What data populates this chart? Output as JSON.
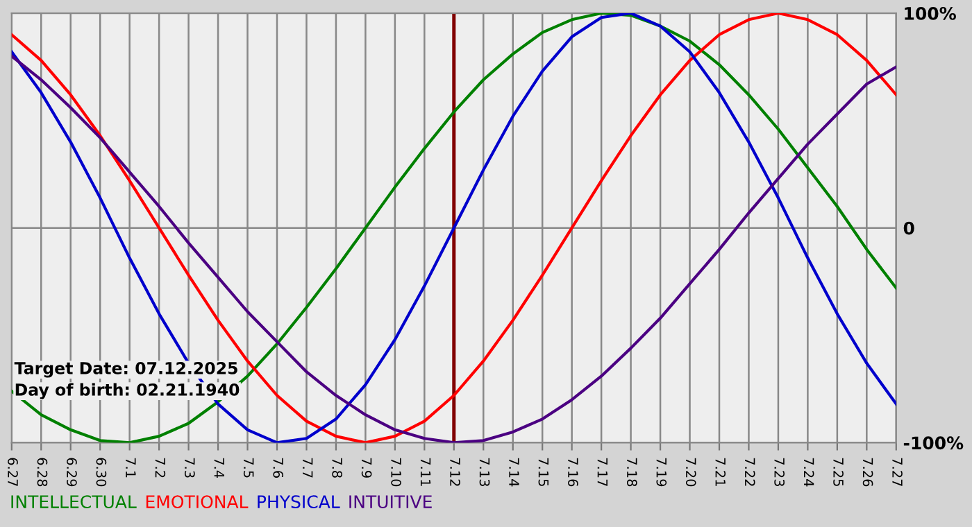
{
  "chart_data": {
    "type": "line",
    "categories": [
      "6.27",
      "6.28",
      "6.29",
      "6.30",
      "7.1",
      "7.2",
      "7.3",
      "7.4",
      "7.5",
      "7.6",
      "7.7",
      "7.8",
      "7.9",
      "7.10",
      "7.11",
      "7.12",
      "7.13",
      "7.14",
      "7.15",
      "7.16",
      "7.17",
      "7.18",
      "7.19",
      "7.20",
      "7.21",
      "7.22",
      "7.23",
      "7.24",
      "7.25",
      "7.26",
      "7.27"
    ],
    "series": [
      {
        "name": "INTELLECTUAL",
        "color": "#008000",
        "values": [
          -76,
          -87,
          -94,
          -99,
          -100,
          -97,
          -91,
          -81,
          -69,
          -54,
          -37,
          -19,
          0,
          19,
          37,
          54,
          69,
          81,
          91,
          97,
          100,
          99,
          94,
          87,
          76,
          62,
          46,
          28,
          10,
          -10,
          -28
        ]
      },
      {
        "name": "EMOTIONAL",
        "color": "#ff0000",
        "values": [
          90,
          78,
          62,
          43,
          22,
          0,
          -22,
          -43,
          -62,
          -78,
          -90,
          -97,
          -100,
          -97,
          -90,
          -78,
          -62,
          -43,
          -22,
          0,
          22,
          43,
          62,
          78,
          90,
          97,
          100,
          97,
          90,
          78,
          62
        ]
      },
      {
        "name": "PHYSICAL",
        "color": "#0000cc",
        "values": [
          82,
          63,
          40,
          14,
          -14,
          -40,
          -63,
          -82,
          -94,
          -100,
          -98,
          -89,
          -73,
          -52,
          -27,
          0,
          27,
          52,
          73,
          89,
          98,
          100,
          94,
          82,
          63,
          40,
          14,
          -14,
          -40,
          -63,
          -82
        ]
      },
      {
        "name": "INTUITIVE",
        "color": "#4b0082",
        "values": [
          80,
          69,
          56,
          42,
          26,
          10,
          -7,
          -23,
          -39,
          -53,
          -67,
          -78,
          -87,
          -94,
          -98,
          -100,
          -99,
          -95,
          -89,
          -80,
          -69,
          -56,
          -42,
          -26,
          -10,
          7,
          23,
          39,
          53,
          67,
          75
        ]
      }
    ],
    "ylim": [
      -100,
      100
    ],
    "yticks": [
      {
        "value": 100,
        "label": "100%"
      },
      0,
      {
        "value": -100,
        "label": "-100%"
      }
    ],
    "ref_lines": [
      {
        "axis": "x",
        "value": "7.12",
        "color": "#800000"
      }
    ],
    "annotations": [
      "Target Date: 07.12.2025",
      "Day of birth: 02.21.1940"
    ],
    "grid": true,
    "legend": "bottom",
    "marker": "none",
    "line_style": "solid"
  }
}
